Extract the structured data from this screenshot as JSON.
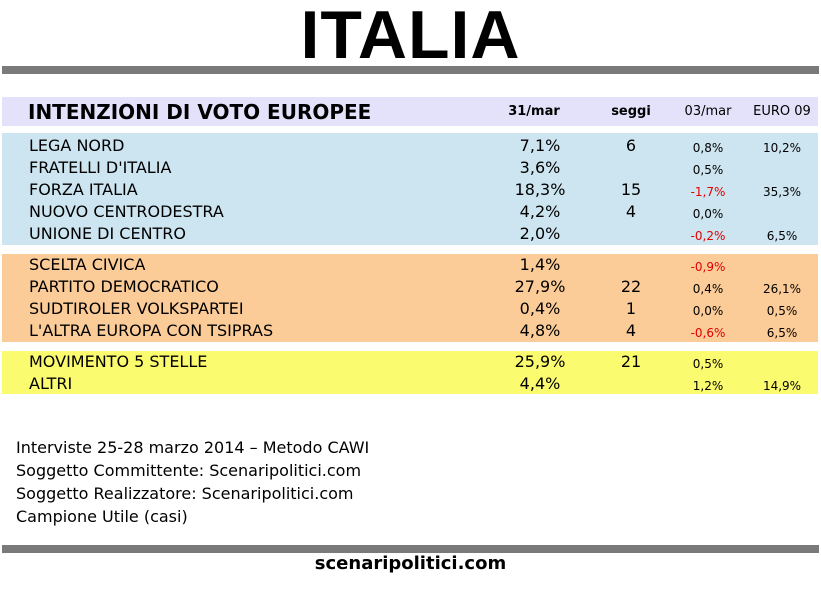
{
  "title": "ITALIA",
  "table": {
    "header": {
      "title": "INTENZIONI DI VOTO EUROPEE",
      "col_date": "31/mar",
      "col_seats": "seggi",
      "col_prev": "03/mar",
      "col_euro": "EURO 09"
    },
    "groups": [
      {
        "color": "#cde5f0",
        "rows": [
          {
            "party": "LEGA NORD",
            "value": "7,1%",
            "seats": "6",
            "prev": "0,8%",
            "prev_negative": false,
            "euro09": "10,2%"
          },
          {
            "party": "FRATELLI D'ITALIA",
            "value": "3,6%",
            "seats": "",
            "prev": "0,5%",
            "prev_negative": false,
            "euro09": ""
          },
          {
            "party": "FORZA ITALIA",
            "value": "18,3%",
            "seats": "15",
            "prev": "-1,7%",
            "prev_negative": true,
            "euro09": "35,3%"
          },
          {
            "party": "NUOVO CENTRODESTRA",
            "value": "4,2%",
            "seats": "4",
            "prev": "0,0%",
            "prev_negative": false,
            "euro09": ""
          },
          {
            "party": "UNIONE DI CENTRO",
            "value": "2,0%",
            "seats": "",
            "prev": "-0,2%",
            "prev_negative": true,
            "euro09": "6,5%"
          }
        ]
      },
      {
        "color": "#fccc98",
        "rows": [
          {
            "party": "SCELTA CIVICA",
            "value": "1,4%",
            "seats": "",
            "prev": "-0,9%",
            "prev_negative": true,
            "euro09": ""
          },
          {
            "party": "PARTITO DEMOCRATICO",
            "value": "27,9%",
            "seats": "22",
            "prev": "0,4%",
            "prev_negative": false,
            "euro09": "26,1%"
          },
          {
            "party": "SUDTIROLER VOLKSPARTEI",
            "value": "0,4%",
            "seats": "1",
            "prev": "0,0%",
            "prev_negative": false,
            "euro09": "0,5%"
          },
          {
            "party": "L'ALTRA EUROPA CON TSIPRAS",
            "value": "4,8%",
            "seats": "4",
            "prev": "-0,6%",
            "prev_negative": true,
            "euro09": "6,5%"
          }
        ]
      },
      {
        "color": "#fbfb6f",
        "rows": [
          {
            "party": "MOVIMENTO 5 STELLE",
            "value": "25,9%",
            "seats": "21",
            "prev": "0,5%",
            "prev_negative": false,
            "euro09": ""
          },
          {
            "party": "ALTRI",
            "value": "4,4%",
            "seats": "",
            "prev": "1,2%",
            "prev_negative": false,
            "euro09": "14,9%"
          }
        ]
      }
    ]
  },
  "notes": [
    "Interviste 25-28 marzo 2014 – Metodo CAWI",
    "Soggetto Committente: Scenaripolitici.com",
    "Soggetto Realizzatore: Scenaripolitici.com",
    "Campione Utile (casi)"
  ],
  "site": "scenaripolitici.com",
  "colors": {
    "header_bg": "#e4e2fa",
    "bar": "#7a7a7a",
    "negative": "#e00000"
  }
}
